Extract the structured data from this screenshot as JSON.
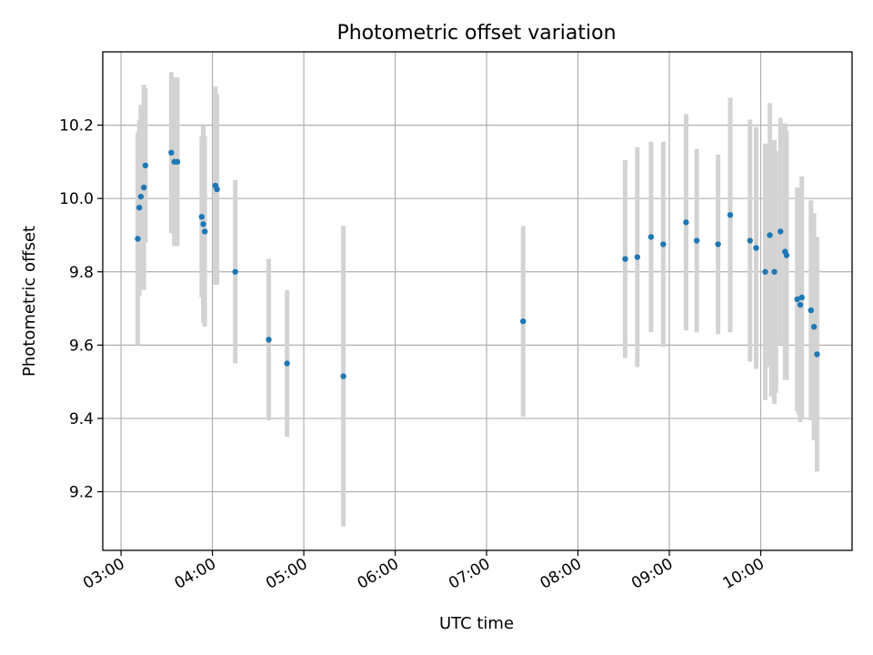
{
  "chart_data": {
    "type": "scatter",
    "title": "Photometric offset variation",
    "xlabel": "UTC time",
    "ylabel": "Photometric offset",
    "x_is_time": true,
    "xlim": [
      "02:48",
      "11:00"
    ],
    "ylim": [
      9.04,
      10.4
    ],
    "xticks": [
      "03:00",
      "04:00",
      "05:00",
      "06:00",
      "07:00",
      "08:00",
      "09:00",
      "10:00"
    ],
    "yticks": [
      "9.2",
      "9.4",
      "9.6",
      "9.8",
      "10.0",
      "10.2"
    ],
    "grid": true,
    "colors": {
      "point": "#1f77b4",
      "errorbar": "#d3d3d3",
      "grid": "#b0b0b0"
    },
    "series": [
      {
        "x": [
          "03:11",
          "03:12",
          "03:13",
          "03:15",
          "03:16",
          "03:33",
          "03:35",
          "03:37",
          "03:53",
          "03:54",
          "03:55",
          "04:02",
          "04:03",
          "04:15",
          "04:37",
          "04:49",
          "05:26",
          "07:24",
          "08:31",
          "08:39",
          "08:48",
          "08:56",
          "09:11",
          "09:18",
          "09:32",
          "09:40",
          "09:53",
          "09:57",
          "10:03",
          "10:06",
          "10:09",
          "10:13",
          "10:16",
          "10:17",
          "10:24",
          "10:26",
          "10:27",
          "10:33",
          "10:35",
          "10:37"
        ],
        "y": [
          9.89,
          9.975,
          10.005,
          10.03,
          10.09,
          10.125,
          10.1,
          10.1,
          9.95,
          9.93,
          9.91,
          10.035,
          10.025,
          9.8,
          9.615,
          9.55,
          9.515,
          9.665,
          9.835,
          9.84,
          9.895,
          9.875,
          9.935,
          9.885,
          9.875,
          9.955,
          9.885,
          9.865,
          9.8,
          9.9,
          9.8,
          9.91,
          9.855,
          9.845,
          9.725,
          9.71,
          9.73,
          9.695,
          9.65,
          9.575
        ],
        "err": [
          0.29,
          0.24,
          0.25,
          0.28,
          0.21,
          0.22,
          0.23,
          0.23,
          0.22,
          0.27,
          0.26,
          0.27,
          0.26,
          0.25,
          0.22,
          0.2,
          0.41,
          0.26,
          0.27,
          0.3,
          0.26,
          0.28,
          0.295,
          0.25,
          0.245,
          0.32,
          0.33,
          0.33,
          0.35,
          0.36,
          0.36,
          0.31,
          0.35,
          0.34,
          0.305,
          0.32,
          0.33,
          0.3,
          0.31,
          0.32
        ]
      },
      {
        "x": [
          "10:07",
          "10:10",
          "10:25"
        ],
        "y": [
          9.81,
          9.8,
          9.72
        ],
        "err": [
          0.35,
          0.33,
          0.31
        ],
        "markers": false
      }
    ]
  }
}
